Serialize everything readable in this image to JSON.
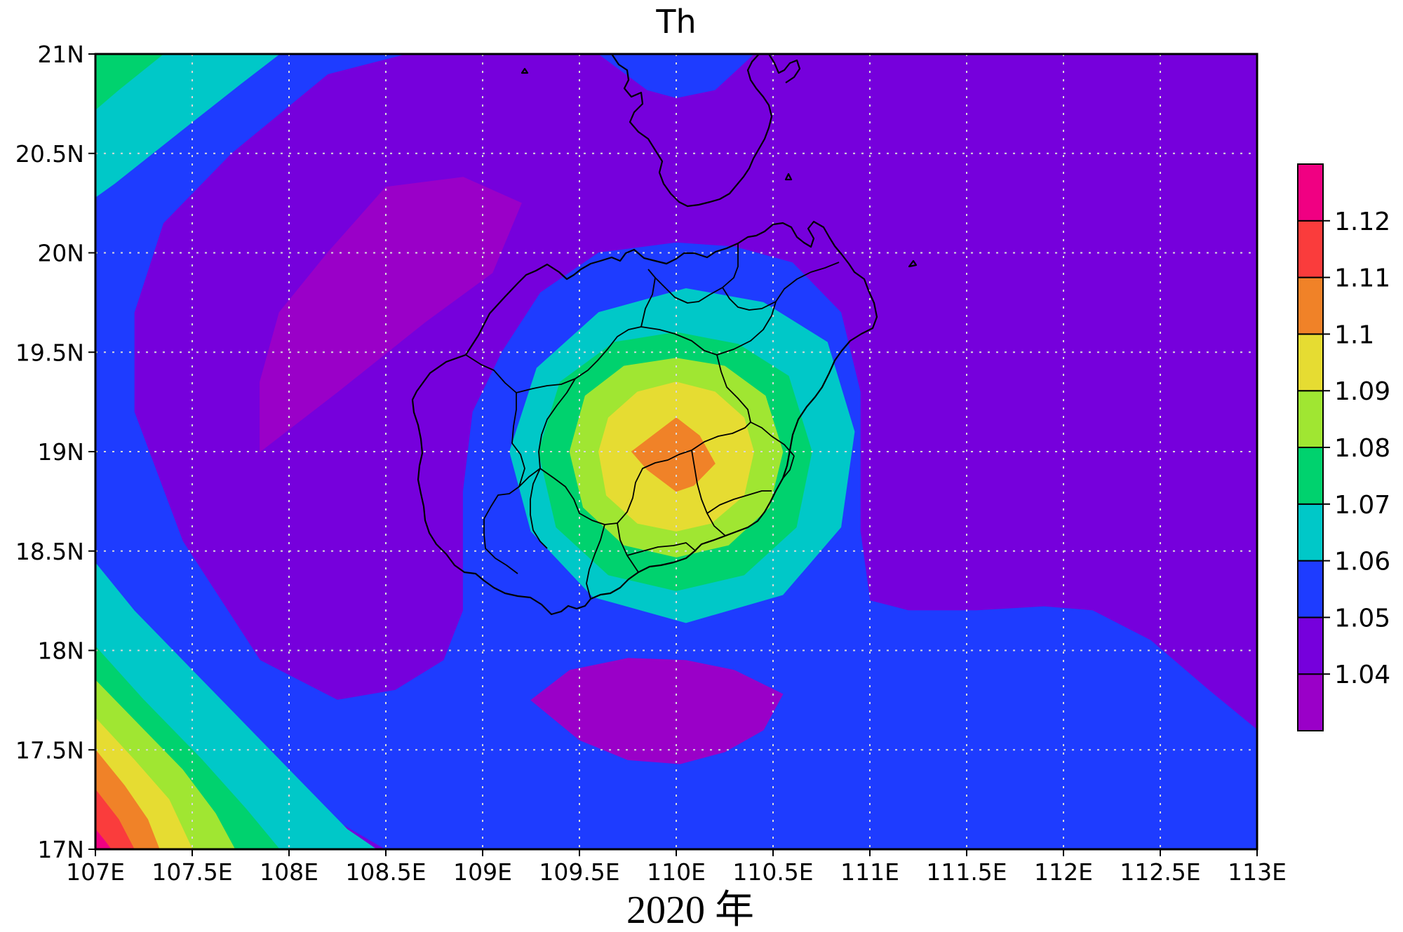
{
  "map": {
    "title": "Th",
    "caption": "2020 年",
    "lon_range": [
      107,
      113
    ],
    "lat_range": [
      17,
      21
    ],
    "lon_ticks": [
      {
        "value": 107,
        "label": "107E"
      },
      {
        "value": 107.5,
        "label": "107.5E"
      },
      {
        "value": 108,
        "label": "108E"
      },
      {
        "value": 108.5,
        "label": "108.5E"
      },
      {
        "value": 109,
        "label": "109E"
      },
      {
        "value": 109.5,
        "label": "109.5E"
      },
      {
        "value": 110,
        "label": "110E"
      },
      {
        "value": 110.5,
        "label": "110.5E"
      },
      {
        "value": 111,
        "label": "111E"
      },
      {
        "value": 111.5,
        "label": "111.5E"
      },
      {
        "value": 112,
        "label": "112E"
      },
      {
        "value": 112.5,
        "label": "112.5E"
      },
      {
        "value": 113,
        "label": "113E"
      }
    ],
    "lat_ticks": [
      {
        "value": 21,
        "label": "21N"
      },
      {
        "value": 20.5,
        "label": "20.5N"
      },
      {
        "value": 20,
        "label": "20N"
      },
      {
        "value": 19.5,
        "label": "19.5N"
      },
      {
        "value": 19,
        "label": "19N"
      },
      {
        "value": 18.5,
        "label": "18.5N"
      },
      {
        "value": 18,
        "label": "18N"
      },
      {
        "value": 17.5,
        "label": "17.5N"
      },
      {
        "value": 17,
        "label": "17N"
      }
    ],
    "grid": true,
    "projection": "equirectangular"
  },
  "colorbar": {
    "placement": "right",
    "levels": [
      {
        "label": "",
        "color": "#9a00c8"
      },
      {
        "label": "1.04",
        "color": "#7600dc"
      },
      {
        "label": "1.05",
        "color": "#1e3cff"
      },
      {
        "label": "1.06",
        "color": "#00c8c8"
      },
      {
        "label": "1.07",
        "color": "#00d26e"
      },
      {
        "label": "1.08",
        "color": "#a0e632"
      },
      {
        "label": "1.09",
        "color": "#e6dc32"
      },
      {
        "label": "1.1",
        "color": "#f08228"
      },
      {
        "label": "1.11",
        "color": "#fa3c3c"
      },
      {
        "label": "1.12",
        "color": "#f00082"
      }
    ]
  },
  "field": {
    "background_level": 1,
    "regions": [
      {
        "level": 2,
        "points": [
          [
            107,
            21
          ],
          [
            107,
            18.4
          ],
          [
            107.05,
            18.3
          ],
          [
            107.5,
            17.85
          ],
          [
            107.85,
            17.45
          ],
          [
            108.2,
            17.17
          ],
          [
            108.5,
            17
          ],
          [
            113,
            17
          ],
          [
            113,
            17.6
          ],
          [
            112.75,
            17.8
          ],
          [
            112.45,
            18.05
          ],
          [
            112.15,
            18.2
          ],
          [
            111.9,
            18.22
          ],
          [
            111.55,
            18.2
          ],
          [
            111.2,
            18.2
          ],
          [
            111,
            18.25
          ],
          [
            110.95,
            18.6
          ],
          [
            110.95,
            19.3
          ],
          [
            110.85,
            19.7
          ],
          [
            110.6,
            19.95
          ],
          [
            110.3,
            20.03
          ],
          [
            110,
            20.05
          ],
          [
            109.6,
            20
          ],
          [
            109.3,
            19.8
          ],
          [
            109.1,
            19.5
          ],
          [
            108.95,
            19.2
          ],
          [
            108.9,
            18.8
          ],
          [
            108.9,
            18.2
          ],
          [
            108.8,
            17.95
          ],
          [
            108.55,
            17.8
          ],
          [
            108.25,
            17.75
          ],
          [
            107.85,
            17.95
          ],
          [
            107.45,
            18.55
          ],
          [
            107.2,
            19.2
          ],
          [
            107.2,
            19.7
          ],
          [
            107.35,
            20.15
          ],
          [
            107.7,
            20.5
          ],
          [
            108.2,
            20.9
          ],
          [
            108.6,
            21
          ]
        ]
      },
      {
        "level": 2,
        "points": [
          [
            109.6,
            21
          ],
          [
            109.85,
            20.82
          ],
          [
            110,
            20.78
          ],
          [
            110.2,
            20.82
          ],
          [
            110.4,
            21
          ]
        ]
      },
      {
        "level": 3,
        "points": [
          [
            107,
            21
          ],
          [
            107,
            20.28
          ],
          [
            107.1,
            20.35
          ],
          [
            107.45,
            20.62
          ],
          [
            107.75,
            20.85
          ],
          [
            107.95,
            21
          ]
        ]
      },
      {
        "level": 4,
        "points": [
          [
            107,
            21
          ],
          [
            107,
            20.72
          ],
          [
            107.12,
            20.82
          ],
          [
            107.35,
            21
          ]
        ]
      },
      {
        "level": 3,
        "points": [
          [
            107,
            18.44
          ],
          [
            107.2,
            18.2
          ],
          [
            107.45,
            17.95
          ],
          [
            107.75,
            17.65
          ],
          [
            108.05,
            17.35
          ],
          [
            108.3,
            17.1
          ],
          [
            108.45,
            17
          ],
          [
            107,
            17
          ]
        ]
      },
      {
        "level": 4,
        "points": [
          [
            107,
            18.02
          ],
          [
            107.25,
            17.75
          ],
          [
            107.55,
            17.45
          ],
          [
            107.78,
            17.2
          ],
          [
            107.95,
            17
          ],
          [
            107,
            17
          ]
        ]
      },
      {
        "level": 5,
        "points": [
          [
            107,
            17.85
          ],
          [
            107.2,
            17.65
          ],
          [
            107.45,
            17.4
          ],
          [
            107.62,
            17.18
          ],
          [
            107.72,
            17
          ],
          [
            107,
            17
          ]
        ]
      },
      {
        "level": 6,
        "points": [
          [
            107,
            17.66
          ],
          [
            107.2,
            17.45
          ],
          [
            107.38,
            17.25
          ],
          [
            107.5,
            17
          ],
          [
            107,
            17
          ]
        ]
      },
      {
        "level": 7,
        "points": [
          [
            107,
            17.5
          ],
          [
            107.15,
            17.32
          ],
          [
            107.27,
            17.15
          ],
          [
            107.33,
            17
          ],
          [
            107,
            17
          ]
        ]
      },
      {
        "level": 8,
        "points": [
          [
            107,
            17.3
          ],
          [
            107.12,
            17.15
          ],
          [
            107.2,
            17
          ],
          [
            107,
            17
          ]
        ]
      },
      {
        "level": 9,
        "points": [
          [
            107,
            17.1
          ],
          [
            107.05,
            17.04
          ],
          [
            107.08,
            17
          ],
          [
            107,
            17
          ]
        ]
      },
      {
        "level": 0,
        "points": [
          [
            107.85,
            19.0
          ],
          [
            108.25,
            19.3
          ],
          [
            108.7,
            19.65
          ],
          [
            109.05,
            19.9
          ],
          [
            109.2,
            20.25
          ],
          [
            108.9,
            20.38
          ],
          [
            108.5,
            20.33
          ],
          [
            108.2,
            20.0
          ],
          [
            107.95,
            19.7
          ],
          [
            107.85,
            19.35
          ]
        ]
      },
      {
        "level": 0,
        "points": [
          [
            109.25,
            17.75
          ],
          [
            109.45,
            17.9
          ],
          [
            109.75,
            17.96
          ],
          [
            110.05,
            17.95
          ],
          [
            110.3,
            17.9
          ],
          [
            110.55,
            17.78
          ],
          [
            110.45,
            17.6
          ],
          [
            110.25,
            17.49
          ],
          [
            110.02,
            17.43
          ],
          [
            109.75,
            17.45
          ],
          [
            109.5,
            17.55
          ]
        ]
      },
      {
        "level": 3,
        "points": [
          [
            110,
            19.2
          ],
          [
            110.26,
            19.13
          ],
          [
            110.45,
            18.94
          ],
          [
            110.52,
            18.68
          ],
          [
            110.45,
            18.42
          ],
          [
            110.26,
            18.23
          ],
          [
            110,
            18.16
          ],
          [
            109.74,
            18.23
          ],
          [
            109.55,
            18.42
          ],
          [
            109.48,
            18.68
          ],
          [
            109.55,
            18.94
          ],
          [
            109.74,
            19.13
          ]
        ]
      },
      {
        "level": 4,
        "points": [
          [
            110,
            19.02
          ],
          [
            110.17,
            18.97
          ],
          [
            110.3,
            18.85
          ],
          [
            110.34,
            18.68
          ],
          [
            110.3,
            18.51
          ],
          [
            110.17,
            18.38
          ],
          [
            110,
            18.34
          ],
          [
            109.83,
            18.38
          ],
          [
            109.7,
            18.51
          ],
          [
            109.66,
            18.68
          ],
          [
            109.7,
            18.85
          ],
          [
            109.83,
            18.97
          ]
        ]
      },
      {
        "level": 5,
        "points": [
          [
            110.03,
            19.5
          ],
          [
            110.34,
            19.41
          ],
          [
            110.56,
            19.22
          ],
          [
            110.65,
            18.95
          ],
          [
            110.56,
            18.65
          ],
          [
            110.34,
            18.44
          ],
          [
            110.03,
            18.36
          ],
          [
            109.72,
            18.44
          ],
          [
            109.5,
            18.65
          ],
          [
            109.41,
            18.95
          ],
          [
            109.5,
            19.22
          ],
          [
            109.72,
            19.41
          ]
        ]
      },
      {
        "level": 4,
        "points": [
          [
            110.03,
            19.5
          ],
          [
            110.36,
            19.44
          ],
          [
            110.6,
            19.26
          ],
          [
            110.7,
            18.98
          ],
          [
            110.62,
            18.68
          ],
          [
            110.4,
            18.48
          ],
          [
            110.05,
            18.4
          ],
          [
            109.72,
            18.47
          ],
          [
            109.47,
            18.66
          ],
          [
            109.38,
            18.96
          ],
          [
            109.47,
            19.25
          ],
          [
            109.7,
            19.44
          ]
        ]
      },
      {
        "level": 3,
        "points": [
          [
            110.05,
            19.82
          ],
          [
            110.45,
            19.75
          ],
          [
            110.78,
            19.55
          ],
          [
            110.92,
            19.1
          ],
          [
            110.85,
            18.62
          ],
          [
            110.55,
            18.28
          ],
          [
            110.05,
            18.14
          ],
          [
            109.57,
            18.27
          ],
          [
            109.25,
            18.6
          ],
          [
            109.14,
            19.0
          ],
          [
            109.28,
            19.42
          ],
          [
            109.6,
            19.7
          ]
        ]
      },
      {
        "level": 4,
        "points": [
          [
            110.0,
            19.6
          ],
          [
            110.32,
            19.54
          ],
          [
            110.58,
            19.38
          ],
          [
            110.7,
            19.0
          ],
          [
            110.62,
            18.62
          ],
          [
            110.35,
            18.38
          ],
          [
            110.0,
            18.3
          ],
          [
            109.65,
            18.38
          ],
          [
            109.38,
            18.62
          ],
          [
            109.29,
            19.0
          ],
          [
            109.4,
            19.35
          ],
          [
            109.68,
            19.55
          ]
        ]
      },
      {
        "level": 5,
        "points": [
          [
            110.0,
            19.47
          ],
          [
            110.25,
            19.43
          ],
          [
            110.46,
            19.28
          ],
          [
            110.55,
            19.0
          ],
          [
            110.48,
            18.72
          ],
          [
            110.27,
            18.53
          ],
          [
            110.0,
            18.47
          ],
          [
            109.73,
            18.53
          ],
          [
            109.52,
            18.72
          ],
          [
            109.45,
            19.0
          ],
          [
            109.53,
            19.28
          ],
          [
            109.73,
            19.43
          ]
        ]
      },
      {
        "level": 6,
        "points": [
          [
            110.0,
            19.35
          ],
          [
            110.2,
            19.3
          ],
          [
            110.35,
            19.17
          ],
          [
            110.4,
            19.0
          ],
          [
            110.35,
            18.78
          ],
          [
            110.18,
            18.64
          ],
          [
            110.0,
            18.6
          ],
          [
            109.8,
            18.64
          ],
          [
            109.64,
            18.78
          ],
          [
            109.6,
            19.0
          ],
          [
            109.65,
            19.17
          ],
          [
            109.8,
            19.3
          ]
        ]
      },
      {
        "level": 7,
        "points": [
          [
            110.0,
            19.17
          ],
          [
            110.12,
            19.08
          ],
          [
            110.2,
            18.94
          ],
          [
            110.09,
            18.83
          ],
          [
            110.0,
            18.8
          ],
          [
            109.85,
            18.91
          ],
          [
            109.77,
            19.0
          ]
        ]
      }
    ]
  }
}
